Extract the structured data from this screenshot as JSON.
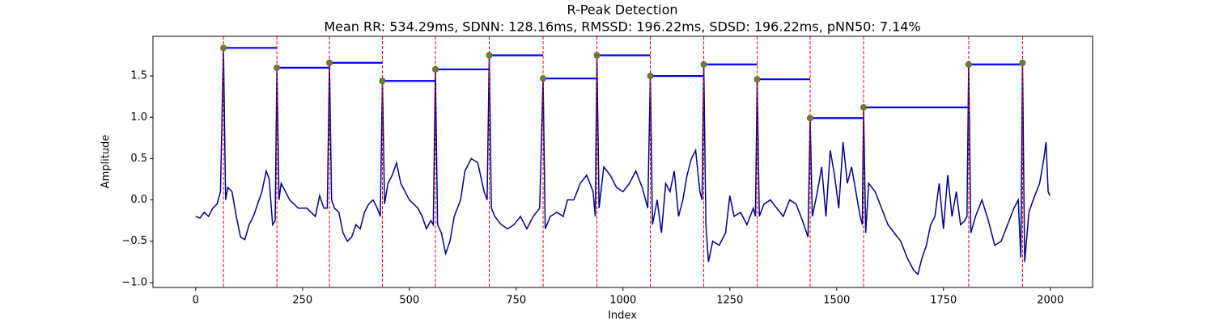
{
  "chart_data": {
    "type": "line",
    "title": "R-Peak Detection",
    "subtitle": "Mean RR: 534.29ms, SDNN: 128.16ms, RMSSD: 196.22ms, SDSD: 196.22ms, pNN50: 7.14%",
    "xlabel": "Index",
    "ylabel": "Amplitude",
    "xlim": [
      -100,
      2099
    ],
    "ylim": [
      -1.06,
      1.98
    ],
    "xticks": [
      0,
      250,
      500,
      750,
      1000,
      1250,
      1500,
      1750,
      2000
    ],
    "yticks": [
      {
        "value": -1.0,
        "label": "−1.0"
      },
      {
        "value": -0.5,
        "label": "−0.5"
      },
      {
        "value": 0,
        "label": "0.0"
      },
      0.5,
      {
        "value": 1.0,
        "label": "1.0"
      },
      1.5
    ],
    "grid": false,
    "series": [
      {
        "color": "#00008b",
        "x": [
          0,
          10,
          20,
          30,
          40,
          50,
          58,
          65,
          70,
          75,
          85,
          95,
          105,
          115,
          125,
          135,
          145,
          155,
          165,
          172,
          180,
          186,
          190,
          195,
          200,
          210,
          220,
          230,
          240,
          250,
          260,
          270,
          280,
          290,
          300,
          308,
          313,
          318,
          325,
          335,
          345,
          355,
          365,
          375,
          385,
          395,
          405,
          415,
          425,
          432,
          437,
          442,
          450,
          460,
          470,
          480,
          490,
          500,
          510,
          520,
          530,
          540,
          550,
          556,
          561,
          566,
          575,
          585,
          595,
          605,
          620,
          630,
          645,
          660,
          675,
          682,
          687,
          692,
          700,
          715,
          730,
          745,
          760,
          775,
          790,
          805,
          813,
          818,
          830,
          845,
          860,
          870,
          885,
          900,
          915,
          930,
          935,
          939,
          944,
          955,
          970,
          985,
          1000,
          1015,
          1030,
          1045,
          1058,
          1064,
          1069,
          1080,
          1090,
          1100,
          1110,
          1120,
          1130,
          1140,
          1150,
          1160,
          1170,
          1180,
          1185,
          1189,
          1194,
          1200,
          1210,
          1225,
          1240,
          1250,
          1260,
          1275,
          1290,
          1305,
          1310,
          1314,
          1319,
          1330,
          1345,
          1360,
          1375,
          1390,
          1405,
          1420,
          1433,
          1438,
          1443,
          1455,
          1465,
          1475,
          1485,
          1495,
          1505,
          1515,
          1525,
          1535,
          1545,
          1555,
          1560,
          1563,
          1568,
          1575,
          1590,
          1605,
          1620,
          1635,
          1650,
          1665,
          1680,
          1690,
          1700,
          1710,
          1720,
          1730,
          1740,
          1750,
          1760,
          1770,
          1780,
          1790,
          1800,
          1805,
          1809,
          1814,
          1825,
          1840,
          1855,
          1870,
          1885,
          1900,
          1915,
          1925,
          1931,
          1935,
          1940,
          1950,
          1960,
          1975,
          1985,
          1990,
          1995,
          1999
        ],
        "values": [
          -0.2,
          -0.22,
          -0.15,
          -0.2,
          -0.1,
          -0.05,
          0.1,
          1.84,
          0.0,
          0.15,
          0.1,
          -0.2,
          -0.45,
          -0.48,
          -0.3,
          -0.2,
          -0.05,
          0.1,
          0.35,
          0.25,
          -0.3,
          -0.25,
          1.6,
          0.0,
          0.2,
          0.1,
          0.0,
          -0.05,
          -0.1,
          -0.1,
          -0.1,
          -0.15,
          -0.2,
          0.05,
          -0.1,
          -0.1,
          1.66,
          0.0,
          -0.1,
          -0.15,
          -0.4,
          -0.5,
          -0.45,
          -0.3,
          -0.35,
          -0.15,
          -0.05,
          0.0,
          -0.1,
          -0.2,
          1.44,
          -0.05,
          0.2,
          0.3,
          0.45,
          0.2,
          0.1,
          0.0,
          -0.05,
          -0.1,
          -0.2,
          -0.35,
          -0.25,
          -0.3,
          1.58,
          -0.3,
          -0.4,
          -0.65,
          -0.5,
          -0.2,
          0.0,
          0.35,
          0.5,
          0.45,
          0.1,
          0.0,
          1.75,
          -0.1,
          -0.2,
          -0.3,
          -0.35,
          -0.3,
          -0.2,
          -0.35,
          -0.2,
          -0.1,
          1.47,
          -0.35,
          -0.2,
          -0.15,
          -0.2,
          0.0,
          0.0,
          0.2,
          0.3,
          0.1,
          -0.2,
          1.75,
          -0.1,
          0.4,
          0.3,
          0.15,
          0.1,
          0.2,
          0.35,
          0.15,
          -0.1,
          1.5,
          -0.3,
          0.0,
          -0.4,
          0.2,
          0.1,
          0.35,
          -0.2,
          0.0,
          0.3,
          0.5,
          0.6,
          0.1,
          0.0,
          1.64,
          -0.3,
          -0.75,
          -0.5,
          -0.55,
          -0.4,
          0.05,
          -0.2,
          -0.15,
          -0.3,
          -0.1,
          -0.2,
          1.46,
          -0.2,
          -0.05,
          0.0,
          -0.1,
          -0.2,
          0.0,
          -0.05,
          -0.25,
          -0.45,
          0.99,
          -0.2,
          0.1,
          0.4,
          -0.2,
          0.6,
          0.3,
          -0.1,
          0.7,
          0.2,
          0.4,
          0.1,
          -0.2,
          -0.3,
          1.12,
          -0.4,
          0.2,
          0.1,
          -0.1,
          -0.3,
          -0.4,
          -0.5,
          -0.7,
          -0.85,
          -0.9,
          -0.7,
          -0.55,
          -0.3,
          -0.2,
          0.2,
          -0.35,
          0.3,
          -0.2,
          0.1,
          -0.3,
          -0.25,
          -0.2,
          1.64,
          -0.4,
          -0.2,
          0.0,
          -0.25,
          -0.55,
          -0.5,
          -0.3,
          -0.1,
          0.0,
          -0.7,
          1.66,
          -0.75,
          -0.15,
          0.0,
          0.2,
          0.5,
          0.7,
          0.1,
          0.05
        ]
      }
    ],
    "peaks": {
      "x": [
        65,
        190,
        313,
        437,
        561,
        687,
        813,
        939,
        1064,
        1189,
        1314,
        1438,
        1563,
        1809,
        1935
      ],
      "values": [
        1.84,
        1.6,
        1.66,
        1.44,
        1.58,
        1.75,
        1.47,
        1.75,
        1.5,
        1.64,
        1.46,
        0.99,
        1.12,
        1.64,
        1.66
      ],
      "color": "#2ca02c",
      "edgecolor": "#d62728",
      "peak_line_color": "#ff0000",
      "rr_line_color": "#0000ff"
    }
  }
}
